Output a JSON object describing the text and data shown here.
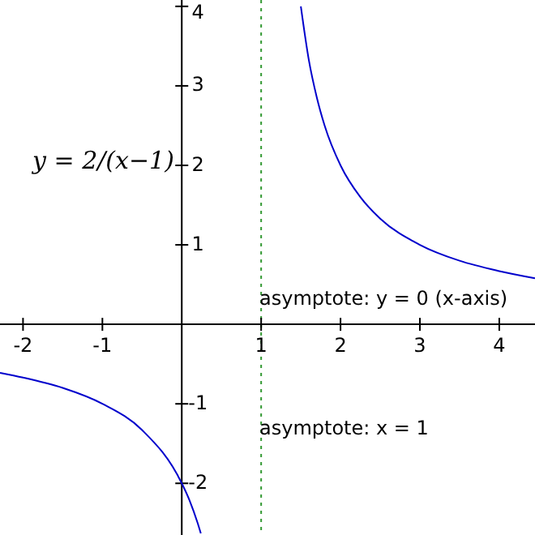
{
  "chart_data": {
    "type": "line",
    "x": [
      -2.29,
      -2,
      -1.5,
      -1,
      -0.5,
      0,
      0.1,
      0.2,
      0.24,
      1,
      1.5,
      1.6,
      1.7,
      1.8,
      2,
      2.25,
      2.5,
      3,
      3.5,
      4,
      4.45
    ],
    "series": [
      {
        "color": "#0000cc",
        "values": [
          -0.61,
          -0.67,
          -0.8,
          -1,
          -1.33,
          -2,
          -2.22,
          -2.5,
          -2.63,
          null,
          4,
          3.33,
          2.86,
          2.5,
          2,
          1.6,
          1.33,
          1,
          0.8,
          0.67,
          0.58
        ]
      }
    ],
    "xlim": [
      -2.29,
      4.45
    ],
    "ylim": [
      -2.65,
      4.08
    ],
    "xticks": [
      -2,
      -1,
      1,
      2,
      3,
      4
    ],
    "yticks": [
      -2,
      -1,
      1,
      2,
      3,
      4
    ],
    "ref_lines": [
      {
        "axis": "x",
        "value": 1,
        "color": "#339933",
        "line_style": "dotted"
      }
    ],
    "annotations": [
      "y = 2/(x−1)",
      "asymptote: y = 0 (x-axis)",
      "asymptote: x = 1"
    ]
  }
}
